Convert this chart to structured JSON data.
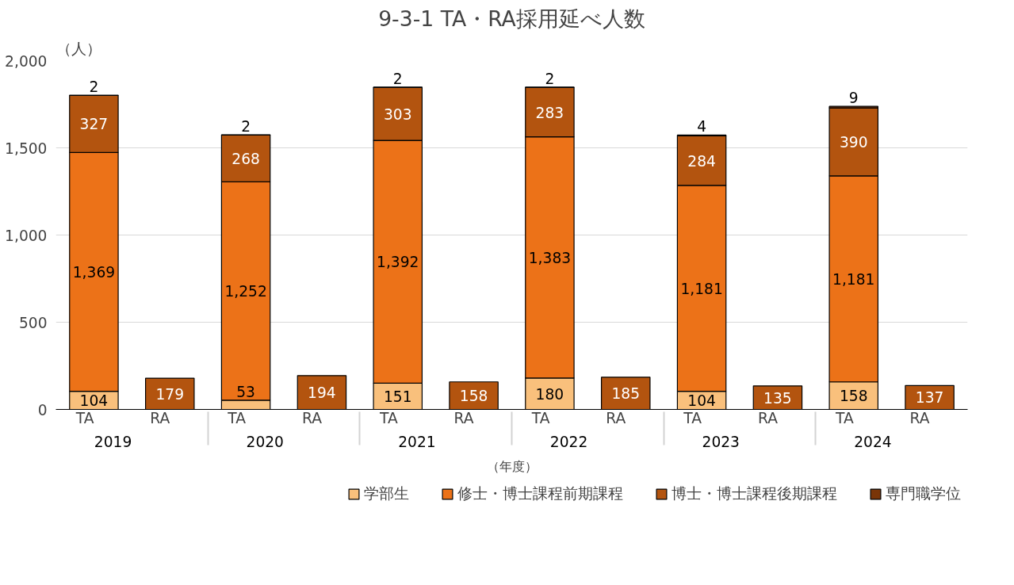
{
  "chart_data": {
    "type": "bar",
    "title": "9-3-1 TA・RA採用延べ人数",
    "ylabel": "（人）",
    "xlabel": "（年度）",
    "categories": [
      "TA",
      "RA",
      "TA",
      "RA",
      "TA",
      "RA",
      "TA",
      "RA",
      "TA",
      "RA",
      "TA",
      "RA"
    ],
    "annotations": [
      "2019",
      "2020",
      "2021",
      "2022",
      "2023",
      "2024"
    ],
    "stacked": true,
    "grid": "y",
    "legend": "bottom",
    "ylim": [
      0,
      2000
    ],
    "yticks": [
      0,
      500,
      {
        "value": 1000,
        "label": "1,000"
      },
      {
        "value": 1500,
        "label": "1,500"
      },
      {
        "value": 2000,
        "label": "2,000"
      }
    ],
    "series": [
      {
        "name": "学部生",
        "color": "#f9c07c",
        "values": [
          104,
          null,
          53,
          null,
          151,
          null,
          180,
          null,
          104,
          null,
          158,
          null
        ],
        "value_labels": [
          "104",
          null,
          "53",
          null,
          "151",
          null,
          "180",
          null,
          "104",
          null,
          "158",
          null
        ]
      },
      {
        "name": "修士・博士課程前期課程",
        "color": "#ec7218",
        "values": [
          1369,
          null,
          1252,
          null,
          1392,
          null,
          1383,
          null,
          1181,
          null,
          1181,
          null
        ],
        "value_labels": [
          "1,369",
          null,
          "1,252",
          null,
          "1,392",
          null,
          "1,383",
          null,
          "1,181",
          null,
          "1,181",
          null
        ]
      },
      {
        "name": "博士・博士課程後期課程",
        "color": "#b3540f",
        "values": [
          327,
          179,
          268,
          194,
          303,
          158,
          283,
          185,
          284,
          135,
          390,
          137
        ],
        "value_labels": [
          "327",
          "179",
          "268",
          "194",
          "303",
          "158",
          "283",
          "185",
          "284",
          "135",
          "390",
          "137"
        ]
      },
      {
        "name": "専門職学位",
        "color": "#7a3508",
        "values": [
          2,
          null,
          2,
          null,
          2,
          null,
          2,
          null,
          4,
          null,
          9,
          null
        ],
        "value_labels": [
          "2",
          null,
          "2",
          null,
          "2",
          null,
          "2",
          null,
          "4",
          null,
          "9",
          null
        ]
      }
    ]
  }
}
